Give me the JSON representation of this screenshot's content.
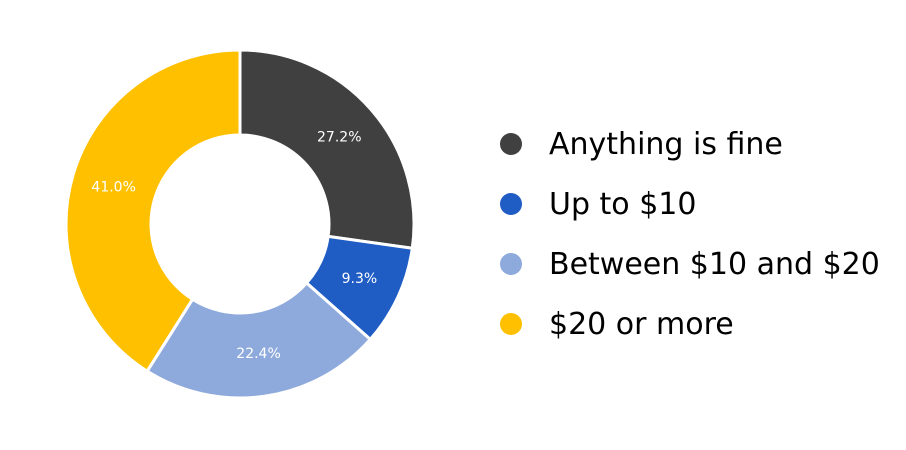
{
  "chart_data": {
    "type": "pie",
    "donut": true,
    "legend_position": "right",
    "title": "",
    "categories": [
      "Anything is fine",
      "Up to $10",
      "Between $10 and $20",
      "$20 or more"
    ],
    "values": [
      27.2,
      9.3,
      22.4,
      41.0
    ],
    "data_labels": [
      "27.2%",
      "9.3%",
      "22.4%",
      "41.0%"
    ],
    "colors": [
      "#404040",
      "#1f5cc4",
      "#8eaadc",
      "#ffc000"
    ]
  }
}
